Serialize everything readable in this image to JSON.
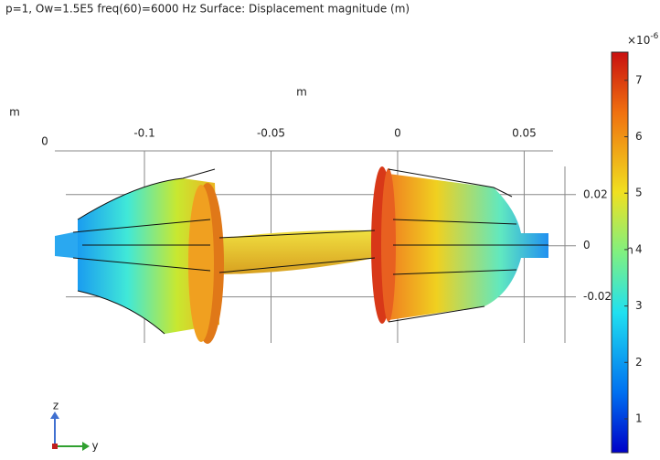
{
  "chart_data": {
    "type": "surface",
    "title": "p=1, Ow=1.5E5 freq(60)=6000 Hz  Surface: Displacement magnitude (m)",
    "x_label": "m",
    "y_label": "m",
    "y_tick": 0,
    "side_label": "n",
    "xlim": [
      -0.1354,
      0.0614
    ],
    "xticks": [
      -0.1,
      -0.05,
      0,
      0.05
    ],
    "zlim": [
      -0.038,
      0.031
    ],
    "zticks": [
      0.02,
      0,
      -0.02
    ],
    "colorbar": {
      "clim": [
        0.4,
        7.5
      ],
      "ticks": [
        1,
        2,
        3,
        4,
        5,
        6,
        7
      ],
      "multiplier": "×10",
      "exponent": "-6"
    },
    "triad": {
      "z": "z",
      "y": "y"
    }
  }
}
